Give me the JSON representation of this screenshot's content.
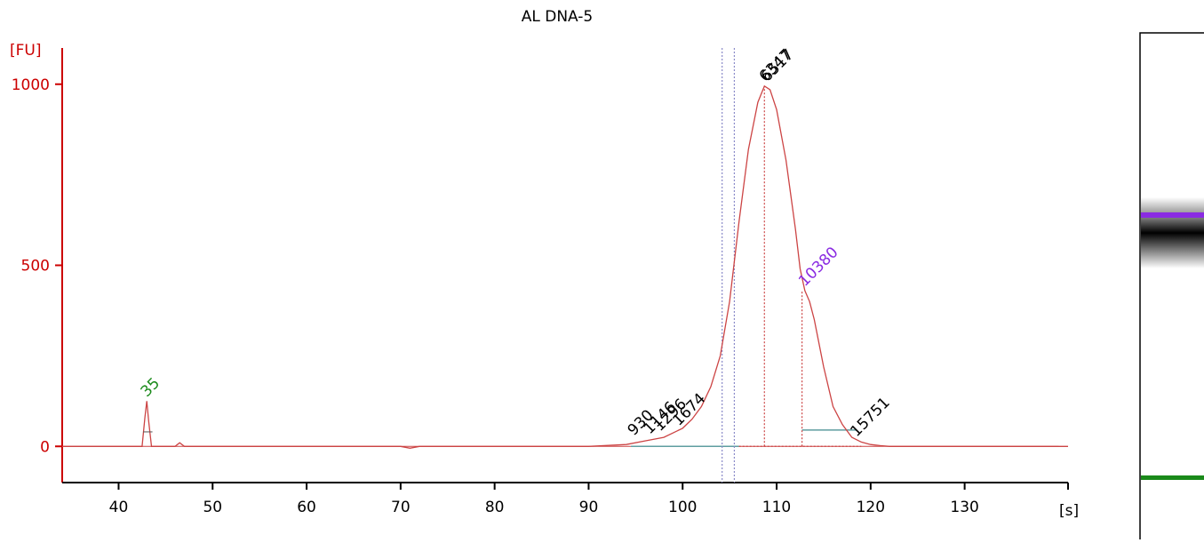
{
  "chart_data": {
    "type": "line",
    "title": "AL DNA-5",
    "ylabel": "[FU]",
    "xlabel": "[s]",
    "xlim": [
      34,
      141
    ],
    "ylim": [
      -100,
      1100
    ],
    "x_ticks": [
      40,
      50,
      60,
      70,
      80,
      90,
      100,
      110,
      120,
      130
    ],
    "y_ticks": [
      0,
      500,
      1000
    ],
    "grid": false,
    "colors": {
      "axis": "#cc0000",
      "trace": "#cc4444",
      "marker_upper": "#8a2be2",
      "marker_lower": "#1a8a1a",
      "region": "#5f9ea0",
      "smear_divider": "#8a8ac8",
      "peak_label": "#000000"
    },
    "series": [
      {
        "x": [
          34,
          42.5,
          42.8,
          43.0,
          43.2,
          43.5,
          46,
          46.5,
          47,
          70,
          71,
          72,
          85,
          90,
          94,
          96,
          98,
          100,
          101,
          102,
          103,
          104,
          105,
          106,
          107,
          108,
          108.7,
          109.3,
          110,
          111,
          112,
          112.5,
          113,
          113.5,
          114,
          115,
          116,
          117,
          118,
          119,
          120,
          121,
          122,
          141
        ],
        "values": [
          0,
          0,
          80,
          125,
          70,
          0,
          0,
          10,
          0,
          0,
          -5,
          0,
          0,
          0,
          5,
          15,
          25,
          50,
          75,
          110,
          165,
          250,
          400,
          620,
          820,
          950,
          995,
          985,
          930,
          790,
          600,
          490,
          430,
          400,
          350,
          220,
          110,
          60,
          25,
          12,
          5,
          2,
          0,
          0
        ]
      }
    ],
    "peaks": [
      {
        "label": "35",
        "x": 43.0,
        "y": 125,
        "color": "marker_lower"
      },
      {
        "label": "930",
        "x": 94.8,
        "y": 18,
        "color": "peak_label"
      },
      {
        "label": "1146",
        "x": 96.5,
        "y": 22,
        "color": "peak_label"
      },
      {
        "label": "1296",
        "x": 97.6,
        "y": 30,
        "color": "peak_label"
      },
      {
        "label": "1674",
        "x": 99.6,
        "y": 45,
        "color": "peak_label"
      },
      {
        "label": "6347",
        "x": 108.8,
        "y": 995,
        "color": "peak_label"
      },
      {
        "label": "6517",
        "x": 109.0,
        "y": 995,
        "color": "peak_label"
      },
      {
        "label": "10380",
        "x": 113.0,
        "y": 430,
        "color": "marker_upper"
      },
      {
        "label": "15751",
        "x": 118.5,
        "y": 15,
        "color": "peak_label"
      }
    ],
    "smear_dividers": [
      104.2,
      105.5
    ],
    "peak_drops": [
      108.7,
      112.7
    ],
    "gel_bands": [
      {
        "name": "upper-marker",
        "color": "marker_upper"
      },
      {
        "name": "main-band",
        "color": "#000000"
      },
      {
        "name": "lower-marker",
        "color": "marker_lower"
      }
    ]
  }
}
